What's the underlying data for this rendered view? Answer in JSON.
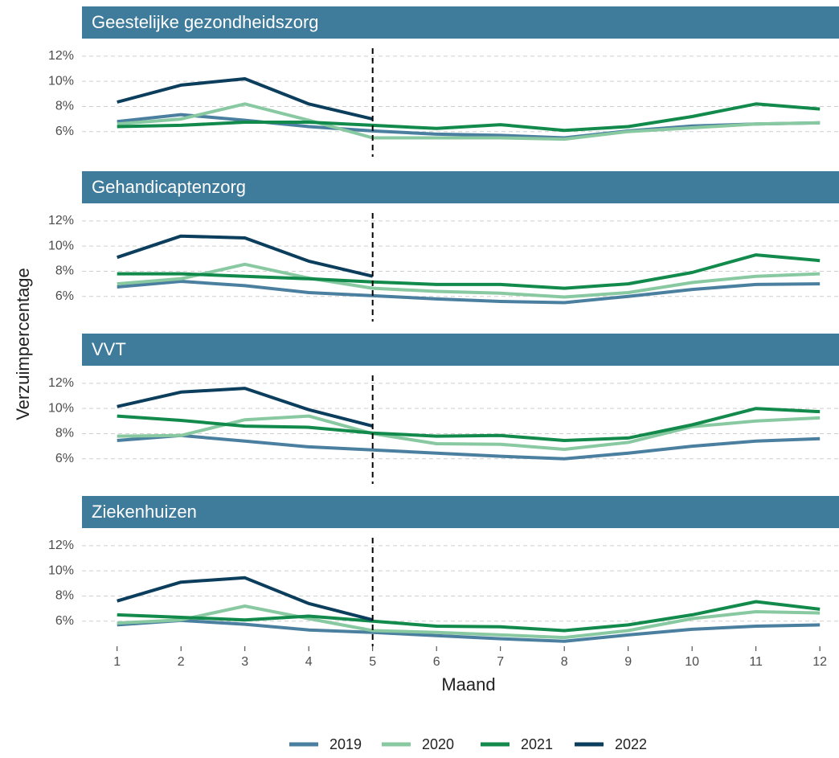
{
  "chart_data": {
    "type": "line",
    "xlabel": "Maand",
    "ylabel": "Verzuimpercentage",
    "x": [
      1,
      2,
      3,
      4,
      5,
      6,
      7,
      8,
      9,
      10,
      11,
      12
    ],
    "xlim": [
      0.45,
      12.3
    ],
    "xticks": [
      1,
      2,
      3,
      4,
      5,
      6,
      7,
      8,
      9,
      10,
      11,
      12
    ],
    "ylim": [
      4,
      13.4
    ],
    "yticks": [
      {
        "value": 6,
        "label": "6%"
      },
      {
        "value": 8,
        "label": "8%"
      },
      {
        "value": 10,
        "label": "10%"
      },
      {
        "value": 12,
        "label": "12%"
      }
    ],
    "vline": 5,
    "grid": true,
    "legend": "bottom",
    "facets": [
      {
        "title": "Geestelijke gezondheidszorg",
        "series": [
          {
            "name": "2019",
            "color": "#4a7fa0",
            "values": [
              6.8,
              7.35,
              6.9,
              6.4,
              6.05,
              5.8,
              5.7,
              5.5,
              6.05,
              6.45,
              6.6,
              6.7
            ]
          },
          {
            "name": "2020",
            "color": "#88c9a1",
            "values": [
              6.6,
              7.0,
              8.2,
              6.9,
              5.5,
              5.5,
              5.5,
              5.4,
              6.0,
              6.3,
              6.6,
              6.7
            ]
          },
          {
            "name": "2021",
            "color": "#128a4c",
            "values": [
              6.4,
              6.5,
              6.75,
              6.75,
              6.5,
              6.25,
              6.55,
              6.1,
              6.4,
              7.2,
              8.2,
              7.8
            ]
          },
          {
            "name": "2022",
            "color": "#0b3d5c",
            "values": [
              8.35,
              9.7,
              10.2,
              8.2,
              7.0,
              null,
              null,
              null,
              null,
              null,
              null,
              null
            ]
          }
        ]
      },
      {
        "title": "Gehandicaptenzorg",
        "series": [
          {
            "name": "2019",
            "color": "#4a7fa0",
            "values": [
              6.75,
              7.2,
              6.85,
              6.3,
              6.05,
              5.8,
              5.6,
              5.5,
              6.0,
              6.55,
              6.95,
              7.0
            ]
          },
          {
            "name": "2020",
            "color": "#88c9a1",
            "values": [
              7.0,
              7.4,
              8.55,
              7.45,
              6.65,
              6.4,
              6.25,
              5.95,
              6.3,
              7.1,
              7.6,
              7.8
            ]
          },
          {
            "name": "2021",
            "color": "#128a4c",
            "values": [
              7.8,
              7.8,
              7.6,
              7.4,
              7.15,
              6.95,
              6.95,
              6.65,
              7.0,
              7.9,
              9.3,
              8.85
            ]
          },
          {
            "name": "2022",
            "color": "#0b3d5c",
            "values": [
              9.1,
              10.8,
              10.65,
              8.8,
              7.6,
              null,
              null,
              null,
              null,
              null,
              null,
              null
            ]
          }
        ]
      },
      {
        "title": "VVT",
        "series": [
          {
            "name": "2019",
            "color": "#4a7fa0",
            "values": [
              7.45,
              7.85,
              7.4,
              6.95,
              6.7,
              6.45,
              6.2,
              6.0,
              6.45,
              7.0,
              7.4,
              7.6
            ]
          },
          {
            "name": "2020",
            "color": "#88c9a1",
            "values": [
              7.8,
              7.85,
              9.1,
              9.4,
              8.0,
              7.2,
              7.15,
              6.75,
              7.3,
              8.55,
              9.0,
              9.25
            ]
          },
          {
            "name": "2021",
            "color": "#128a4c",
            "values": [
              9.4,
              9.05,
              8.6,
              8.5,
              8.05,
              7.8,
              7.85,
              7.45,
              7.65,
              8.7,
              10.0,
              9.75
            ]
          },
          {
            "name": "2022",
            "color": "#0b3d5c",
            "values": [
              10.15,
              11.3,
              11.6,
              9.9,
              8.6,
              null,
              null,
              null,
              null,
              null,
              null,
              null
            ]
          }
        ]
      },
      {
        "title": "Ziekenhuizen",
        "series": [
          {
            "name": "2019",
            "color": "#4a7fa0",
            "values": [
              5.7,
              6.05,
              5.75,
              5.3,
              5.1,
              4.85,
              4.6,
              4.4,
              4.9,
              5.35,
              5.6,
              5.7
            ]
          },
          {
            "name": "2020",
            "color": "#88c9a1",
            "values": [
              5.85,
              6.1,
              7.2,
              6.2,
              5.25,
              5.1,
              4.9,
              4.7,
              5.25,
              6.2,
              6.75,
              6.65
            ]
          },
          {
            "name": "2021",
            "color": "#128a4c",
            "values": [
              6.5,
              6.3,
              6.1,
              6.4,
              6.0,
              5.6,
              5.55,
              5.25,
              5.7,
              6.5,
              7.55,
              6.95
            ]
          },
          {
            "name": "2022",
            "color": "#0b3d5c",
            "values": [
              7.6,
              9.1,
              9.45,
              7.4,
              6.1,
              null,
              null,
              null,
              null,
              null,
              null,
              null
            ]
          }
        ]
      }
    ]
  }
}
